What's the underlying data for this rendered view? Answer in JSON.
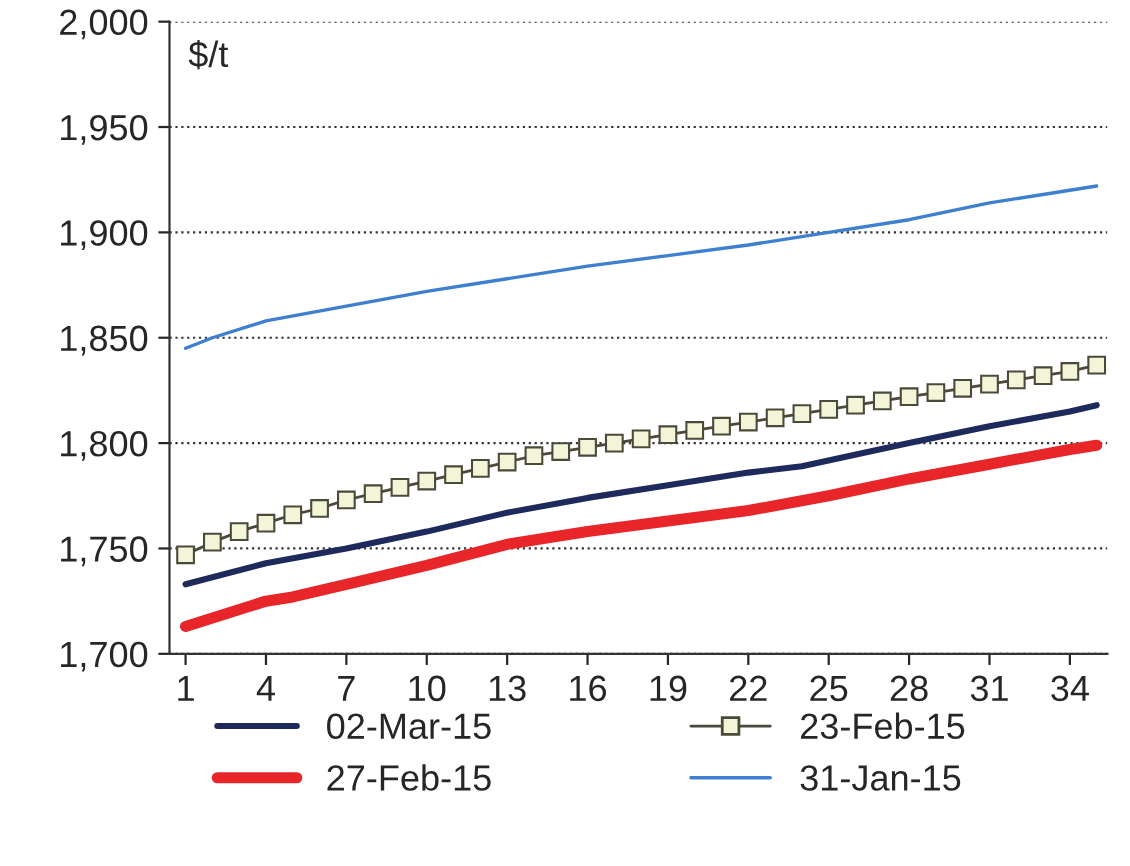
{
  "chart_data": {
    "type": "line",
    "ylabel": "$/t",
    "xlim": [
      0.4,
      35.4
    ],
    "xticks": [
      1,
      4,
      7,
      10,
      13,
      16,
      19,
      22,
      25,
      28,
      31,
      34
    ],
    "ylim": [
      1700,
      2000
    ],
    "yticks": [
      {
        "value": 1700,
        "label": "1,700"
      },
      {
        "value": 1750,
        "label": "1,750"
      },
      {
        "value": 1800,
        "label": "1,800"
      },
      {
        "value": 1850,
        "label": "1,850"
      },
      {
        "value": 1900,
        "label": "1,900"
      },
      {
        "value": 1950,
        "label": "1,950"
      },
      {
        "value": 2000,
        "label": "2,000"
      }
    ],
    "grid": "y",
    "legend": "bottom",
    "marker": "none",
    "line_style": "solid",
    "series": [
      {
        "name": "02-Mar-15",
        "color": "#1f2a5c",
        "x": [
          1,
          4,
          7,
          10,
          13,
          16,
          19,
          22,
          24,
          28,
          31,
          34,
          35
        ],
        "values": [
          1733,
          1743,
          1750,
          1758,
          1767,
          1774,
          1780,
          1786,
          1789,
          1800,
          1808,
          1815,
          1818
        ]
      },
      {
        "name": "27-Feb-15",
        "color": "#e8262a",
        "x": [
          1,
          4,
          5,
          7,
          10,
          13,
          16,
          19,
          22,
          25,
          28,
          31,
          34,
          35
        ],
        "values": [
          1713,
          1725,
          1727,
          1733,
          1742,
          1752,
          1758,
          1763,
          1768,
          1775,
          1783,
          1790,
          1797,
          1799
        ]
      },
      {
        "name": "23-Feb-15",
        "color": "#4a4a3a",
        "marker": "square",
        "x": [
          1,
          2,
          3,
          4,
          5,
          6,
          7,
          8,
          9,
          10,
          11,
          12,
          13,
          14,
          15,
          16,
          17,
          18,
          19,
          20,
          21,
          22,
          23,
          24,
          25,
          26,
          27,
          28,
          29,
          30,
          31,
          32,
          33,
          34,
          35
        ],
        "values": [
          1747,
          1753,
          1758,
          1762,
          1766,
          1769,
          1773,
          1776,
          1779,
          1782,
          1785,
          1788,
          1791,
          1794,
          1796,
          1798,
          1800,
          1802,
          1804,
          1806,
          1808,
          1810,
          1812,
          1814,
          1816,
          1818,
          1820,
          1822,
          1824,
          1826,
          1828,
          1830,
          1832,
          1834,
          1837
        ]
      },
      {
        "name": "31-Jan-15",
        "color": "#3f7fd0",
        "x": [
          1,
          2,
          4,
          7,
          10,
          13,
          16,
          19,
          22,
          25,
          28,
          31,
          34,
          35
        ],
        "values": [
          1845,
          1850,
          1858,
          1865,
          1872,
          1878,
          1884,
          1889,
          1894,
          1900,
          1906,
          1914,
          1920,
          1922
        ]
      }
    ]
  }
}
